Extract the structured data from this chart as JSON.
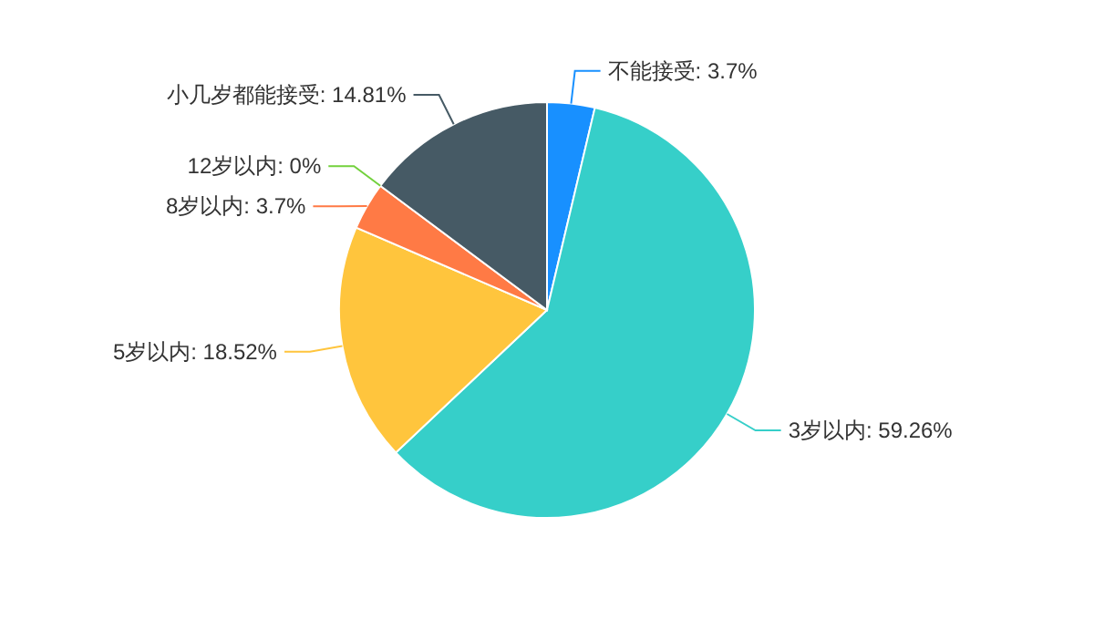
{
  "chart_data": {
    "type": "pie",
    "categories": [
      "不能接受",
      "3岁以内",
      "5岁以内",
      "8岁以内",
      "12岁以内",
      "小几岁都能接受"
    ],
    "values": [
      3.7,
      59.26,
      18.52,
      3.7,
      0,
      14.81
    ],
    "value_labels": [
      "3.7%",
      "59.26%",
      "18.52%",
      "3.7%",
      "0%",
      "14.81%"
    ],
    "colors": [
      "#1890ff",
      "#36cfc9",
      "#ffc53d",
      "#ff7a45",
      "#73d13d",
      "#465a65"
    ]
  }
}
